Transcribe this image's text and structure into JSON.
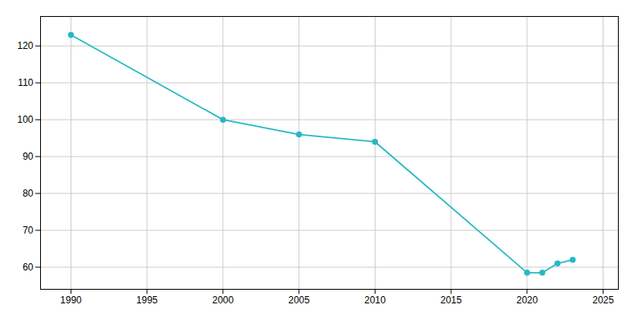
{
  "chart_data": {
    "type": "line",
    "x": [
      1990,
      2000,
      2005,
      2010,
      2020,
      2021,
      2022,
      2023
    ],
    "values": [
      123,
      100,
      96,
      94,
      58.5,
      58.5,
      61,
      62
    ],
    "color": "#29B8C4",
    "marker": "circle",
    "xlim": [
      1988,
      2026
    ],
    "ylim": [
      54,
      128
    ],
    "xticks": [
      1990,
      1995,
      2000,
      2005,
      2010,
      2015,
      2020,
      2025
    ],
    "yticks": [
      60,
      70,
      80,
      90,
      100,
      110,
      120
    ],
    "grid": true
  }
}
